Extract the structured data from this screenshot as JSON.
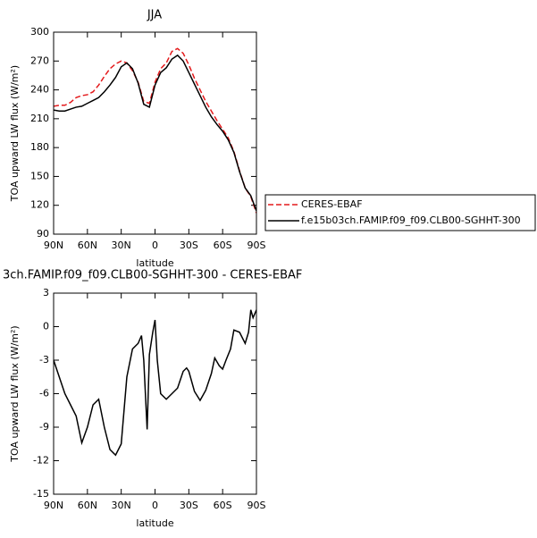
{
  "chart_data": [
    {
      "type": "line",
      "title": "JJA",
      "xlabel": "latitude",
      "ylabel": "TOA upward LW flux (W/m²)",
      "x": [
        90,
        85,
        80,
        75,
        70,
        65,
        60,
        55,
        50,
        45,
        40,
        35,
        30,
        25,
        20,
        15,
        10,
        5,
        0,
        -5,
        -10,
        -15,
        -20,
        -25,
        -30,
        -35,
        -40,
        -45,
        -50,
        -55,
        -60,
        -65,
        -70,
        -75,
        -80,
        -85,
        -90
      ],
      "xlim": [
        90,
        -90
      ],
      "ylim": [
        90,
        300
      ],
      "xticks": [
        {
          "value": 90,
          "label": "90N"
        },
        {
          "value": 60,
          "label": "60N"
        },
        {
          "value": 30,
          "label": "30N"
        },
        0,
        {
          "value": -30,
          "label": "30S"
        },
        {
          "value": -60,
          "label": "60S"
        },
        {
          "value": -90,
          "label": "90S"
        }
      ],
      "yticks": [
        90,
        120,
        150,
        180,
        210,
        240,
        270,
        300
      ],
      "legend": "right",
      "series": [
        {
          "name": "CERES-EBAF",
          "color": "#e41a1c",
          "style": "dashed",
          "values": [
            223,
            224,
            224,
            227,
            232,
            234,
            235,
            238,
            245,
            254,
            262,
            267,
            270,
            268,
            260,
            248,
            228,
            226,
            248,
            262,
            268,
            280,
            283,
            278,
            266,
            252,
            240,
            228,
            218,
            208,
            199,
            190,
            176,
            156,
            138,
            129,
            112
          ]
        },
        {
          "name": "f.e15b03ch.FAMIP.f09_f09.CLB00-SGHHT-300",
          "color": "#000000",
          "style": "solid",
          "values": [
            219,
            218,
            218,
            220,
            222,
            223,
            226,
            229,
            232,
            238,
            245,
            253,
            264,
            268,
            262,
            247,
            225,
            222,
            245,
            258,
            263,
            272,
            276,
            270,
            258,
            246,
            234,
            222,
            212,
            204,
            197,
            188,
            175,
            155,
            138,
            130,
            114
          ]
        }
      ]
    },
    {
      "type": "line",
      "title": "3ch.FAMIP.f09_f09.CLB00-SGHHT-300 - CERES-EBAF",
      "xlabel": "latitude",
      "ylabel": "TOA upward LW flux (W/m²)",
      "x": [
        90,
        85,
        80,
        75,
        70,
        65,
        60,
        55,
        50,
        45,
        40,
        35,
        30,
        25,
        20,
        15,
        12,
        10,
        7,
        5,
        2,
        0,
        -2,
        -5,
        -10,
        -15,
        -20,
        -25,
        -28,
        -30,
        -35,
        -40,
        -45,
        -50,
        -53,
        -57,
        -60,
        -63,
        -67,
        -70,
        -75,
        -80,
        -83,
        -85,
        -87,
        -90
      ],
      "xlim": [
        90,
        -90
      ],
      "ylim": [
        -15,
        3
      ],
      "xticks": [
        {
          "value": 90,
          "label": "90N"
        },
        {
          "value": 60,
          "label": "60N"
        },
        {
          "value": 30,
          "label": "30N"
        },
        0,
        {
          "value": -30,
          "label": "30S"
        },
        {
          "value": -60,
          "label": "60S"
        },
        {
          "value": -90,
          "label": "90S"
        }
      ],
      "yticks": [
        -15,
        -12,
        -9,
        -6,
        -3,
        0,
        3
      ],
      "series": [
        {
          "color": "#000000",
          "style": "solid",
          "values": [
            -3,
            -4.5,
            -6,
            -7,
            -8,
            -10.4,
            -9,
            -7,
            -6.5,
            -9,
            -11,
            -11.5,
            -10.5,
            -4.5,
            -2,
            -1.5,
            -0.8,
            -3,
            -9.2,
            -2.5,
            -0.5,
            0.6,
            -3,
            -6,
            -6.5,
            -6,
            -5.5,
            -4,
            -3.7,
            -4,
            -5.8,
            -6.6,
            -5.7,
            -4.2,
            -2.8,
            -3.5,
            -3.8,
            -3,
            -2,
            -0.3,
            -0.5,
            -1.5,
            -0.5,
            1.5,
            0.8,
            1.5
          ]
        }
      ]
    }
  ]
}
